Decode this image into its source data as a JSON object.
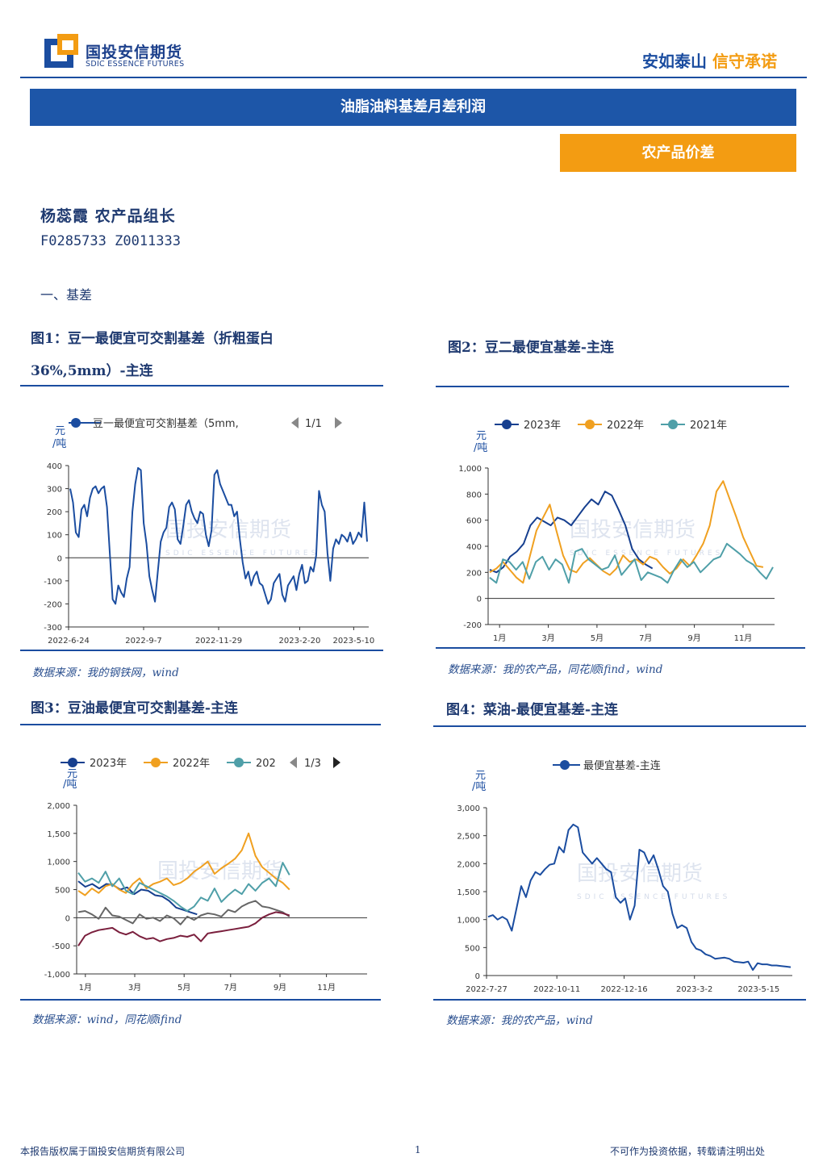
{
  "header": {
    "company_cn": "国投安信期货",
    "company_en": "SDIC ESSENCE FUTURES",
    "slogan_a": "安如泰山",
    "slogan_b": "信守承诺"
  },
  "title": "油脂油料基差月差利润",
  "category": "农产品价差",
  "author": "杨蕊霞  农产品组长",
  "cert": "F0285733  Z0011333",
  "section": "一、基差",
  "watermark": "国投安信期货",
  "watermark_en": "SDIC ESSENCE FUTURES",
  "figures": [
    {
      "title_line1": "图1：豆一最便宜可交割基差（折粗蛋白",
      "title_line2": "36%,5mm）-主连",
      "source": "数据来源：我的钢铁网，wind",
      "legend": "豆一最便宜可交割基差（5mm,",
      "pager": "1/1",
      "unit": "元/吨",
      "y_ticks": [
        "400",
        "300",
        "200",
        "100",
        "0",
        "-100",
        "-200",
        "-300"
      ],
      "x_ticks": [
        "2022-6-24",
        "2022-9-7",
        "2022-11-29",
        "2023-2-20",
        "2023-5-10"
      ]
    },
    {
      "title": "图2：豆二最便宜基差-主连",
      "source": "数据来源：我的农产品，同花顺ifind，wind",
      "legend": [
        "2023年",
        "2022年",
        "2021年"
      ],
      "unit": "元/吨",
      "y_ticks": [
        "1,000",
        "800",
        "600",
        "400",
        "200",
        "0",
        "-200"
      ],
      "x_ticks": [
        "1月",
        "3月",
        "5月",
        "7月",
        "9月",
        "11月"
      ]
    },
    {
      "title": "图3：豆油最便宜可交割基差-主连",
      "source": "数据来源：wind，同花顺ifind",
      "legend": [
        "2023年",
        "2022年",
        "202"
      ],
      "pager": "1/3",
      "unit": "元/吨",
      "y_ticks": [
        "2,000",
        "1,500",
        "1,000",
        "500",
        "0",
        "-500",
        "-1,000"
      ],
      "x_ticks": [
        "1月",
        "3月",
        "5月",
        "7月",
        "9月",
        "11月"
      ]
    },
    {
      "title": "图4：菜油-最便宜基差-主连",
      "source": "数据来源：我的农产品，wind",
      "legend": "最便宜基差-主连",
      "unit": "元/吨",
      "y_ticks": [
        "3,000",
        "2,500",
        "2,000",
        "1,500",
        "1,000",
        "500",
        "0"
      ],
      "x_ticks": [
        "2022-7-27",
        "2022-10-11",
        "2022-12-16",
        "2023-3-2",
        "2023-5-15"
      ]
    }
  ],
  "chart_data": [
    {
      "type": "line",
      "title": "图1：豆一最便宜可交割基差（折粗蛋白36%,5mm）-主连",
      "ylabel": "元/吨",
      "ylim": [
        -300,
        400
      ],
      "x_ticks": [
        "2022-6-24",
        "2022-9-7",
        "2022-11-29",
        "2023-2-20",
        "2023-5-10"
      ],
      "series": [
        {
          "name": "豆一最便宜可交割基差（5mm,",
          "color": "#1b4da0",
          "values": [
            300,
            240,
            110,
            90,
            210,
            230,
            180,
            260,
            300,
            310,
            280,
            300,
            310,
            220,
            20,
            -180,
            -200,
            -120,
            -150,
            -170,
            -90,
            -40,
            200,
            320,
            390,
            380,
            150,
            60,
            -80,
            -140,
            -190,
            -60,
            70,
            110,
            130,
            220,
            240,
            210,
            80,
            60,
            140,
            230,
            250,
            200,
            170,
            150,
            200,
            190,
            100,
            50,
            120,
            360,
            380,
            320,
            290,
            260,
            230,
            230,
            180,
            200,
            80,
            -20,
            -90,
            -60,
            -120,
            -80,
            -60,
            -110,
            -120,
            -160,
            -200,
            -180,
            -110,
            -90,
            -70,
            -160,
            -190,
            -120,
            -100,
            -80,
            -140,
            -70,
            -30,
            -110,
            -100,
            -40,
            -60,
            10,
            290,
            230,
            200,
            20,
            -100,
            40,
            80,
            60,
            100,
            90,
            70,
            110,
            60,
            80,
            110,
            90,
            240,
            70
          ]
        }
      ]
    },
    {
      "type": "line",
      "title": "图2：豆二最便宜基差-主连",
      "ylabel": "元/吨",
      "ylim": [
        -200,
        1000
      ],
      "x_ticks": [
        "1月",
        "3月",
        "5月",
        "7月",
        "9月",
        "11月"
      ],
      "series": [
        {
          "name": "2023年",
          "color": "#163f8f",
          "values": [
            220,
            200,
            240,
            320,
            360,
            420,
            560,
            620,
            590,
            560,
            620,
            600,
            560,
            630,
            700,
            760,
            720,
            820,
            790,
            680,
            560,
            380,
            300,
            260,
            230
          ]
        },
        {
          "name": "2022年",
          "color": "#f0a020",
          "values": [
            200,
            230,
            280,
            220,
            160,
            120,
            320,
            520,
            620,
            720,
            520,
            330,
            220,
            200,
            270,
            310,
            260,
            210,
            180,
            230,
            330,
            280,
            300,
            260,
            320,
            300,
            240,
            190,
            230,
            300,
            250,
            330,
            420,
            560,
            820,
            900,
            760,
            620,
            470,
            360,
            250,
            240
          ]
        },
        {
          "name": "2021年",
          "color": "#4f9fa8",
          "values": [
            160,
            120,
            300,
            280,
            220,
            280,
            150,
            280,
            320,
            220,
            300,
            260,
            120,
            360,
            380,
            300,
            260,
            220,
            240,
            330,
            180,
            240,
            300,
            140,
            200,
            180,
            160,
            120,
            220,
            300,
            240,
            280,
            200,
            250,
            300,
            320,
            420,
            380,
            340,
            290,
            260,
            200,
            150,
            240
          ]
        }
      ]
    },
    {
      "type": "line",
      "title": "图3：豆油最便宜可交割基差-主连",
      "ylabel": "元/吨",
      "ylim": [
        -1000,
        2000
      ],
      "x_ticks": [
        "1月",
        "3月",
        "5月",
        "7月",
        "9月",
        "11月"
      ],
      "series": [
        {
          "name": "2023年",
          "color": "#163f8f",
          "values": [
            650,
            550,
            600,
            520,
            600,
            580,
            500,
            540,
            420,
            500,
            480,
            400,
            380,
            300,
            180,
            140,
            100,
            60
          ]
        },
        {
          "name": "2022年",
          "color": "#f0a020",
          "values": [
            480,
            400,
            520,
            440,
            560,
            600,
            500,
            440,
            600,
            700,
            520,
            600,
            640,
            700,
            580,
            620,
            700,
            820,
            900,
            1000,
            780,
            880,
            960,
            1050,
            1200,
            1500,
            1100,
            900,
            800,
            700,
            620,
            500
          ]
        },
        {
          "name": "202",
          "color": "#4f9fa8",
          "values": [
            800,
            640,
            700,
            620,
            820,
            560,
            700,
            480,
            420,
            620,
            560,
            500,
            440,
            380,
            300,
            200,
            120,
            200,
            360,
            300,
            520,
            280,
            400,
            500,
            420,
            600,
            480,
            620,
            700,
            560,
            980,
            760
          ]
        },
        {
          "name": "",
          "color": "#666666",
          "values": [
            100,
            120,
            60,
            -20,
            180,
            40,
            20,
            -40,
            -100,
            60,
            -20,
            0,
            -60,
            40,
            -10,
            -120,
            20,
            -40,
            40,
            80,
            60,
            20,
            140,
            100,
            200,
            260,
            300,
            200,
            180,
            140,
            100,
            20
          ]
        },
        {
          "name": "",
          "color": "#7a1f3d",
          "values": [
            -500,
            -320,
            -260,
            -220,
            -200,
            -180,
            -260,
            -300,
            -250,
            -330,
            -380,
            -360,
            -420,
            -380,
            -360,
            -320,
            -340,
            -300,
            -420,
            -280,
            -260,
            -240,
            -220,
            -200,
            -180,
            -160,
            -100,
            0,
            60,
            100,
            80,
            40
          ]
        }
      ]
    },
    {
      "type": "line",
      "title": "图4：菜油-最便宜基差-主连",
      "ylabel": "元/吨",
      "ylim": [
        0,
        3000
      ],
      "x_ticks": [
        "2022-7-27",
        "2022-10-11",
        "2022-12-16",
        "2023-3-2",
        "2023-5-15"
      ],
      "series": [
        {
          "name": "最便宜基差-主连",
          "color": "#1b4da0",
          "values": [
            1050,
            1080,
            1000,
            1050,
            1000,
            800,
            1200,
            1600,
            1400,
            1700,
            1850,
            1800,
            1900,
            1980,
            2000,
            2300,
            2200,
            2600,
            2700,
            2650,
            2200,
            2100,
            2000,
            2100,
            2000,
            1900,
            1850,
            1400,
            1300,
            1380,
            1000,
            1250,
            2250,
            2200,
            2000,
            2150,
            1900,
            1600,
            1500,
            1100,
            850,
            900,
            850,
            600,
            480,
            450,
            380,
            350,
            300,
            310,
            320,
            300,
            250,
            240,
            230,
            250,
            100,
            220,
            200,
            200,
            180,
            180,
            170,
            160,
            150
          ]
        }
      ]
    }
  ]
}
